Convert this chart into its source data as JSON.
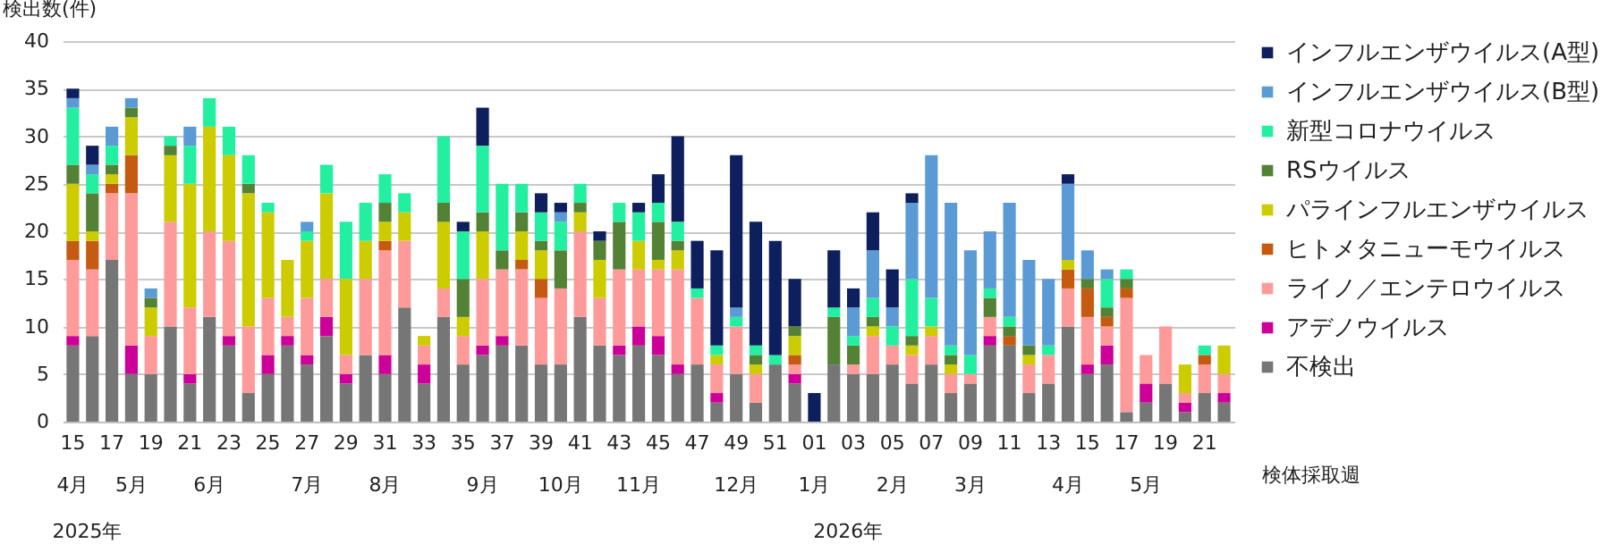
{
  "chart_data": {
    "type": "bar",
    "stacked": true,
    "ylabel": "検出数(件)",
    "xlabel": "検体採取週",
    "categories": [
      "15",
      null,
      "17",
      null,
      "19",
      null,
      "21",
      null,
      "23",
      null,
      "25",
      null,
      "27",
      null,
      "29",
      null,
      "31",
      null,
      "33",
      null,
      "35",
      null,
      "37",
      null,
      "39",
      null,
      "41",
      null,
      "43",
      null,
      "45",
      null,
      "47",
      null,
      "49",
      null,
      "51",
      null,
      "01",
      null,
      "03",
      null,
      "05",
      null,
      "07",
      null,
      "09",
      null,
      "11",
      null,
      "13",
      null,
      "15",
      null,
      "17",
      null,
      "19",
      null,
      "21",
      null
    ],
    "ylim": [
      0,
      40
    ],
    "yticks": [
      0,
      5,
      10,
      15,
      20,
      25,
      30,
      35,
      40
    ],
    "grid": "y",
    "legend": "right",
    "annotations": [
      "4月",
      "5月",
      "6月",
      "7月",
      "8月",
      "9月",
      "10月",
      "11月",
      "12月",
      "1月",
      "2月",
      "3月",
      "4月",
      "5月",
      "2025年",
      "2026年"
    ],
    "series": [
      {
        "name": "不検出",
        "color": "#767676",
        "values": [
          8,
          9,
          17,
          5,
          5,
          10,
          4,
          11,
          8,
          3,
          5,
          8,
          6,
          9,
          4,
          7,
          5,
          12,
          4,
          11,
          6,
          7,
          8,
          8,
          6,
          6,
          11,
          8,
          7,
          8,
          7,
          5,
          6,
          2,
          5,
          2,
          6,
          4,
          0,
          6,
          5,
          5,
          6,
          4,
          6,
          3,
          4,
          8,
          8,
          3,
          4,
          10,
          5,
          6,
          1,
          2,
          4,
          1,
          3,
          2
        ]
      },
      {
        "name": "アデノウイルス",
        "color": "#cc0099",
        "values": [
          1,
          0,
          0,
          3,
          0,
          0,
          1,
          0,
          1,
          0,
          2,
          1,
          1,
          2,
          1,
          0,
          2,
          0,
          2,
          0,
          0,
          1,
          1,
          0,
          0,
          0,
          0,
          0,
          1,
          2,
          2,
          1,
          0,
          1,
          0,
          0,
          0,
          1,
          0,
          0,
          0,
          0,
          0,
          0,
          0,
          0,
          0,
          1,
          0,
          0,
          0,
          0,
          1,
          2,
          0,
          2,
          0,
          1,
          0,
          1
        ]
      },
      {
        "name": "ライノ／エンテロウイルス",
        "color": "#ff9a9a",
        "values": [
          8,
          7,
          7,
          16,
          4,
          11,
          7,
          9,
          10,
          7,
          6,
          2,
          6,
          4,
          2,
          8,
          11,
          7,
          2,
          3,
          3,
          7,
          7,
          8,
          7,
          8,
          9,
          5,
          8,
          6,
          7,
          10,
          7,
          3,
          5,
          3,
          0,
          1,
          0,
          0,
          1,
          4,
          2,
          3,
          3,
          2,
          1,
          2,
          0,
          3,
          3,
          4,
          5,
          2,
          12,
          3,
          6,
          1,
          3,
          2
        ]
      },
      {
        "name": "ヒトメタニューモウイルス",
        "color": "#c55a11",
        "values": [
          2,
          3,
          1,
          4,
          0,
          0,
          0,
          0,
          0,
          0,
          0,
          0,
          0,
          0,
          0,
          0,
          1,
          0,
          0,
          0,
          0,
          0,
          0,
          1,
          2,
          0,
          0,
          0,
          0,
          0,
          0,
          0,
          0,
          0,
          0,
          0,
          0,
          1,
          0,
          0,
          0,
          0,
          0,
          0,
          0,
          0,
          0,
          0,
          1,
          0,
          0,
          2,
          3,
          1,
          1,
          0,
          0,
          0,
          1,
          0
        ]
      },
      {
        "name": "パラインフルエンザウイルス",
        "color": "#cccc00",
        "values": [
          6,
          1,
          1,
          4,
          3,
          7,
          13,
          11,
          9,
          14,
          9,
          6,
          6,
          9,
          8,
          4,
          2,
          3,
          1,
          7,
          2,
          5,
          0,
          3,
          3,
          0,
          2,
          4,
          0,
          3,
          1,
          2,
          0,
          1,
          0,
          1,
          0,
          2,
          0,
          0,
          0,
          1,
          0,
          1,
          1,
          1,
          0,
          0,
          0,
          1,
          0,
          1,
          0,
          0,
          0,
          0,
          0,
          3,
          0,
          3
        ]
      },
      {
        "name": "RSウイルス",
        "color": "#548235",
        "values": [
          2,
          4,
          1,
          1,
          1,
          1,
          0,
          0,
          0,
          1,
          0,
          0,
          0,
          0,
          0,
          0,
          2,
          0,
          0,
          2,
          4,
          2,
          2,
          2,
          1,
          4,
          1,
          2,
          5,
          0,
          4,
          1,
          0,
          0,
          0,
          1,
          0,
          1,
          0,
          5,
          2,
          1,
          0,
          1,
          0,
          1,
          0,
          2,
          1,
          1,
          0,
          0,
          1,
          1,
          1,
          0,
          0,
          0,
          0,
          0
        ]
      },
      {
        "name": "新型コロナウイルス",
        "color": "#22f0a0",
        "values": [
          6,
          2,
          2,
          0,
          0,
          1,
          4,
          3,
          3,
          3,
          1,
          0,
          1,
          3,
          6,
          4,
          3,
          2,
          0,
          7,
          5,
          7,
          7,
          3,
          3,
          3,
          2,
          0,
          2,
          3,
          2,
          2,
          1,
          1,
          1,
          1,
          1,
          0,
          0,
          1,
          1,
          2,
          2,
          6,
          3,
          1,
          2,
          1,
          1,
          0,
          1,
          0,
          0,
          3,
          1,
          0,
          0,
          0,
          1,
          0
        ]
      },
      {
        "name": "インフルエンザウイルス(B型)",
        "color": "#5b9bd5",
        "values": [
          1,
          1,
          2,
          1,
          1,
          0,
          2,
          0,
          0,
          0,
          0,
          0,
          1,
          0,
          0,
          0,
          0,
          0,
          0,
          0,
          0,
          0,
          0,
          0,
          0,
          1,
          0,
          0,
          0,
          0,
          0,
          0,
          0,
          0,
          1,
          0,
          0,
          0,
          0,
          0,
          3,
          5,
          2,
          8,
          15,
          15,
          11,
          6,
          12,
          9,
          7,
          8,
          3,
          1,
          0,
          0,
          0,
          0,
          0,
          0
        ]
      },
      {
        "name": "インフルエンザウイルス(A型)",
        "color": "#0d1f5c",
        "values": [
          1,
          2,
          0,
          0,
          0,
          0,
          0,
          0,
          0,
          0,
          0,
          0,
          0,
          0,
          0,
          0,
          0,
          0,
          0,
          0,
          1,
          4,
          0,
          0,
          2,
          1,
          0,
          1,
          0,
          1,
          3,
          9,
          5,
          10,
          16,
          13,
          12,
          5,
          3,
          6,
          2,
          4,
          4,
          1,
          0,
          0,
          0,
          0,
          0,
          0,
          0,
          1,
          0,
          0,
          0,
          0,
          0,
          0,
          0,
          0
        ]
      }
    ]
  }
}
